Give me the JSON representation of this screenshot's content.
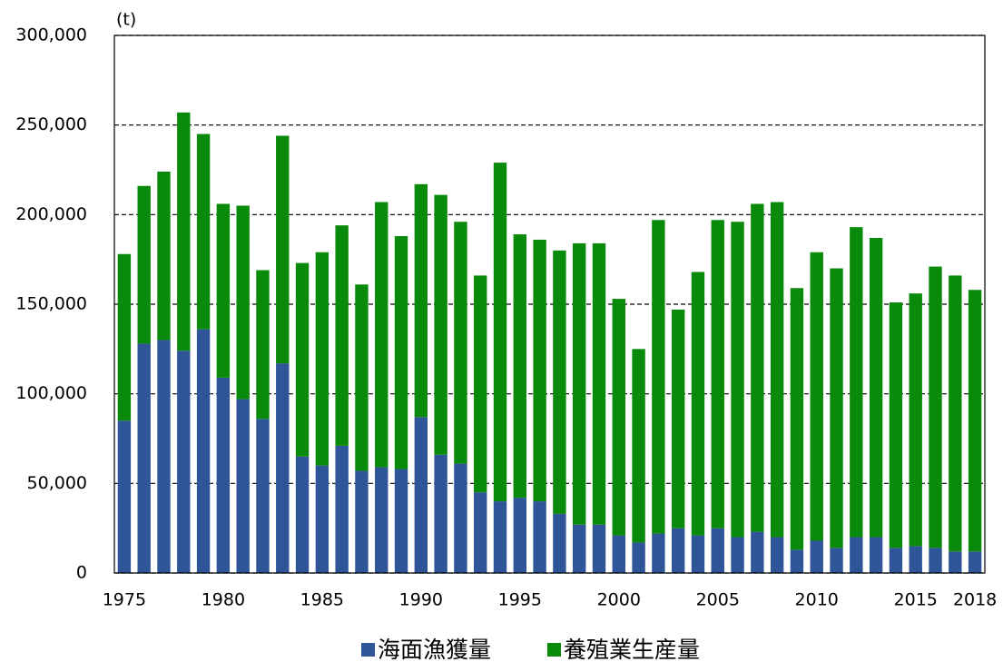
{
  "chart_data": {
    "type": "stacked_bar",
    "y_label": "(t)",
    "categories": [
      "1975",
      null,
      null,
      null,
      null,
      "1980",
      null,
      null,
      null,
      null,
      "1985",
      null,
      null,
      null,
      null,
      "1990",
      null,
      null,
      null,
      null,
      "1995",
      null,
      null,
      null,
      null,
      "2000",
      null,
      null,
      null,
      null,
      "2005",
      null,
      null,
      null,
      null,
      "2010",
      null,
      null,
      null,
      null,
      "2015",
      null,
      null,
      "2018"
    ],
    "series": [
      {
        "name": "海面漁獲量",
        "color": "#2e5597",
        "values": [
          85000,
          128000,
          130000,
          124000,
          136000,
          109000,
          97000,
          86000,
          117000,
          65000,
          60000,
          71000,
          57000,
          59000,
          58000,
          87000,
          66000,
          61000,
          45000,
          40000,
          42000,
          40000,
          33000,
          27000,
          27000,
          21000,
          17000,
          22000,
          25000,
          21000,
          25000,
          20000,
          23000,
          20000,
          13000,
          18000,
          14000,
          20000,
          20000,
          14000,
          15000,
          14000,
          12000,
          12000
        ]
      },
      {
        "name": "養殖業生産量",
        "color": "#0a8a0a",
        "values": [
          93000,
          88000,
          94000,
          133000,
          109000,
          97000,
          108000,
          83000,
          127000,
          108000,
          119000,
          123000,
          104000,
          148000,
          130000,
          130000,
          145000,
          135000,
          121000,
          189000,
          147000,
          146000,
          147000,
          157000,
          157000,
          132000,
          108000,
          175000,
          122000,
          147000,
          172000,
          176000,
          183000,
          187000,
          146000,
          161000,
          156000,
          173000,
          167000,
          137000,
          141000,
          157000,
          154000,
          146000
        ]
      }
    ],
    "ylim": [
      0,
      300000
    ],
    "yticks": [
      0,
      {
        "value": 50000,
        "label": "50,000"
      },
      {
        "value": 100000,
        "label": "100,000"
      },
      {
        "value": 150000,
        "label": "150,000"
      },
      {
        "value": 200000,
        "label": "200,000"
      },
      {
        "value": 250000,
        "label": "250,000"
      },
      {
        "value": 300000,
        "label": "300,000"
      }
    ],
    "grid": true,
    "legend": "bottom"
  }
}
